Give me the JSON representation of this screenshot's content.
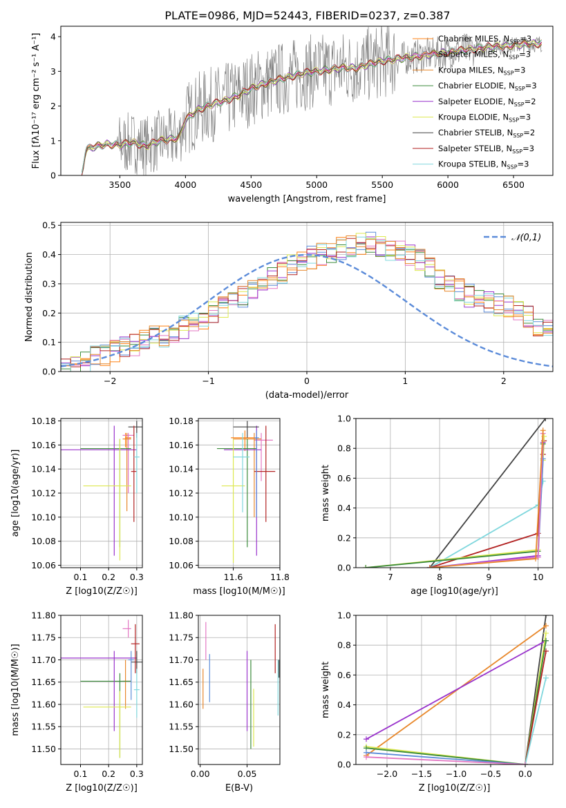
{
  "figure": {
    "title": "PLATE=0986, MJD=52443, FIBERID=0237, z=0.387"
  },
  "chart_data": [
    {
      "id": "spectrum",
      "type": "line",
      "xlabel": "wavelength [Angstrom, rest frame]",
      "ylabel": "Flux [fλ10⁻¹⁷ erg cm⁻² s⁻¹ A⁻¹]",
      "xlim": [
        3050,
        6800
      ],
      "ylim": [
        0,
        4.3
      ],
      "xticks": [
        3500,
        4000,
        4500,
        5000,
        5500,
        6000,
        6500
      ],
      "yticks": [
        0,
        1,
        2,
        3,
        4
      ],
      "grid": false,
      "legend_position": "top-right",
      "data_color": "#808080",
      "continuum_x": [
        3210,
        3240,
        3300,
        3400,
        3500,
        3600,
        3700,
        3800,
        3900,
        3950,
        4000,
        4100,
        4200,
        4300,
        4400,
        4500,
        4600,
        4700,
        4800,
        4900,
        5000,
        5100,
        5200,
        5300,
        5400,
        5500,
        5600,
        5700,
        5800,
        5900,
        6000,
        6100,
        6200,
        6300,
        6400,
        6500,
        6600,
        6700
      ],
      "continuum_y": [
        0,
        0.75,
        0.82,
        0.9,
        0.88,
        0.95,
        0.85,
        1.0,
        1.05,
        1.1,
        1.6,
        1.9,
        2.05,
        2.15,
        2.3,
        2.5,
        2.65,
        2.75,
        2.85,
        2.95,
        3.0,
        3.05,
        3.1,
        3.1,
        3.2,
        3.3,
        3.35,
        3.4,
        3.45,
        3.5,
        3.55,
        3.6,
        3.65,
        3.7,
        3.72,
        3.75,
        3.78,
        3.8
      ],
      "series": [
        {
          "name": "Chabrier MILES, N_SSP=3",
          "color": "#ff7f0e"
        },
        {
          "name": "Salpeter MILES, N_SSP=3",
          "color": "#e377c2"
        },
        {
          "name": "Kroupa MILES, N_SSP=3",
          "color": "#e8872a"
        },
        {
          "name": "Chabrier ELODIE, N_SSP=3",
          "color": "#3a8a3a"
        },
        {
          "name": "Salpeter ELODIE, N_SSP=2",
          "color": "#9932cc"
        },
        {
          "name": "Kroupa ELODIE, N_SSP=3",
          "color": "#dde84f"
        },
        {
          "name": "Chabrier STELIB, N_SSP=2",
          "color": "#404040"
        },
        {
          "name": "Salpeter STELIB, N_SSP=3",
          "color": "#b22222"
        },
        {
          "name": "Kroupa STELIB, N_SSP=3",
          "color": "#7fd7dd"
        }
      ]
    },
    {
      "id": "residuals",
      "type": "line",
      "xlabel": "(data-model)/error",
      "ylabel": "Normed distribution",
      "xlim": [
        -2.5,
        2.5
      ],
      "ylim": [
        0,
        0.51
      ],
      "xticks": [
        -2,
        -1,
        0,
        1,
        2
      ],
      "yticks": [
        0.0,
        0.1,
        0.2,
        0.3,
        0.4,
        0.5
      ],
      "grid": true,
      "legend_position": "top-right",
      "legend": "𝒩(0,1)",
      "gauss_color": "#5b8bd9",
      "hist_colors": [
        "#ff7f0e",
        "#e377c2",
        "#5b8bd9",
        "#3a8a3a",
        "#9932cc",
        "#dde84f",
        "#b22222",
        "#7fd7dd",
        "#e8872a"
      ],
      "bin_width": 0.1,
      "hist_base": [
        0.01,
        0.02,
        0.03,
        0.05,
        0.06,
        0.07,
        0.08,
        0.09,
        0.11,
        0.12,
        0.12,
        0.13,
        0.15,
        0.16,
        0.18,
        0.2,
        0.22,
        0.24,
        0.26,
        0.28,
        0.3,
        0.32,
        0.34,
        0.36,
        0.38,
        0.39,
        0.4,
        0.41,
        0.42,
        0.43,
        0.44,
        0.44,
        0.43,
        0.42,
        0.41,
        0.4,
        0.38,
        0.35,
        0.32,
        0.3,
        0.28,
        0.26,
        0.25,
        0.24,
        0.23,
        0.22,
        0.21,
        0.19,
        0.16,
        0.14,
        0.12,
        0.09,
        0.06,
        0.05,
        0.04,
        0.03,
        0.03,
        0.03,
        0.04,
        0.04
      ]
    },
    {
      "id": "age-vs-Z",
      "type": "scatter",
      "xlabel": "Z [log10(Z/Z☉)]",
      "ylabel": "age  [log10(age/yr)]",
      "xlim": [
        0.03,
        0.32
      ],
      "ylim": [
        10.058,
        10.182
      ],
      "xticks": [
        0.1,
        0.2,
        0.3
      ],
      "yticks": [
        10.06,
        10.08,
        10.1,
        10.12,
        10.14,
        10.16,
        10.18
      ],
      "grid": true,
      "points": [
        {
          "x": 0.26,
          "y": 10.166,
          "xerr": [
            0.26,
            0.28
          ],
          "yerr": [
            10.158,
            10.17
          ],
          "color": "#ff7f0e"
        },
        {
          "x": 0.27,
          "y": 10.168,
          "xerr": [
            0.25,
            0.29
          ],
          "yerr": [
            10.12,
            10.17
          ],
          "color": "#e377c2"
        },
        {
          "x": 0.265,
          "y": 10.165,
          "xerr": [
            0.25,
            0.28
          ],
          "yerr": [
            10.105,
            10.17
          ],
          "color": "#e8872a"
        },
        {
          "x": 0.24,
          "y": 10.157,
          "xerr": [
            0.1,
            0.28
          ],
          "yerr": [
            10.075,
            10.165
          ],
          "color": "#3a8a3a"
        },
        {
          "x": 0.22,
          "y": 10.156,
          "xerr": [
            0.03,
            0.3
          ],
          "yerr": [
            10.068,
            10.176
          ],
          "color": "#9932cc"
        },
        {
          "x": 0.24,
          "y": 10.126,
          "xerr": [
            0.11,
            0.28
          ],
          "yerr": [
            10.064,
            10.165
          ],
          "color": "#dde84f"
        },
        {
          "x": 0.3,
          "y": 10.175,
          "xerr": [
            0.27,
            0.32
          ],
          "yerr": [
            10.166,
            10.18
          ],
          "color": "#404040"
        },
        {
          "x": 0.29,
          "y": 10.138,
          "xerr": [
            0.28,
            0.3
          ],
          "yerr": [
            10.096,
            10.176
          ],
          "color": "#b22222"
        },
        {
          "x": 0.3,
          "y": 10.15,
          "xerr": [
            0.29,
            0.31
          ],
          "yerr": [
            10.12,
            10.17
          ],
          "color": "#7fd7dd"
        }
      ]
    },
    {
      "id": "age-vs-mass",
      "type": "scatter",
      "xlabel": "mass [log10(M/M☉)]",
      "ylabel": "",
      "xlim": [
        11.45,
        11.8
      ],
      "ylim": [
        10.058,
        10.182
      ],
      "xticks": [
        11.6,
        11.8
      ],
      "yticks": [
        10.06,
        10.08,
        10.1,
        10.12,
        10.14,
        10.16,
        10.18
      ],
      "grid": true,
      "points": [
        {
          "x": 11.65,
          "y": 10.166,
          "xerr": [
            11.59,
            11.69
          ],
          "yerr": [
            10.155,
            10.172
          ],
          "color": "#ff7f0e"
        },
        {
          "x": 11.72,
          "y": 10.164,
          "xerr": [
            11.69,
            11.77
          ],
          "yerr": [
            10.13,
            10.17
          ],
          "color": "#e377c2"
        },
        {
          "x": 11.69,
          "y": 10.165,
          "xerr": [
            11.6,
            11.72
          ],
          "yerr": [
            10.1,
            10.17
          ],
          "color": "#e8872a"
        },
        {
          "x": 11.66,
          "y": 10.157,
          "xerr": [
            11.53,
            11.7
          ],
          "yerr": [
            10.075,
            10.165
          ],
          "color": "#3a8a3a"
        },
        {
          "x": 11.7,
          "y": 10.156,
          "xerr": [
            11.56,
            11.72
          ],
          "yerr": [
            10.068,
            10.176
          ],
          "color": "#9932cc"
        },
        {
          "x": 11.6,
          "y": 10.126,
          "xerr": [
            11.55,
            11.65
          ],
          "yerr": [
            10.062,
            10.165
          ],
          "color": "#dde84f"
        },
        {
          "x": 11.66,
          "y": 10.175,
          "xerr": [
            11.6,
            11.71
          ],
          "yerr": [
            10.166,
            10.18
          ],
          "color": "#404040"
        },
        {
          "x": 11.74,
          "y": 10.138,
          "xerr": [
            11.69,
            11.78
          ],
          "yerr": [
            10.096,
            10.176
          ],
          "color": "#b22222"
        },
        {
          "x": 11.64,
          "y": 10.15,
          "xerr": [
            11.6,
            11.67
          ],
          "yerr": [
            10.104,
            10.17
          ],
          "color": "#7fd7dd"
        },
        {
          "x": 11.7,
          "y": 10.166,
          "xerr": [
            11.69,
            11.71
          ],
          "yerr": [
            10.1,
            10.172
          ],
          "color": "#5b8bd9"
        }
      ]
    },
    {
      "id": "massweight-vs-age",
      "type": "line",
      "xlabel": "age  [log10(age/yr)]",
      "ylabel": "mass weight",
      "xlim": [
        6.3,
        10.3
      ],
      "ylim": [
        0,
        1.0
      ],
      "xticks": [
        7,
        8,
        9,
        10
      ],
      "yticks": [
        0.0,
        0.2,
        0.4,
        0.6,
        0.8,
        1.0
      ],
      "grid": true,
      "series": [
        {
          "color": "#404040",
          "x": [
            7.8,
            10.15
          ],
          "y": [
            0.0,
            1.0
          ]
        },
        {
          "color": "#7fd7dd",
          "x": [
            7.8,
            10.0,
            10.1
          ],
          "y": [
            0.0,
            0.42,
            0.58
          ]
        },
        {
          "color": "#b22222",
          "x": [
            7.8,
            10.0,
            10.1,
            10.12
          ],
          "y": [
            0.0,
            0.23,
            0.76,
            0.85
          ]
        },
        {
          "color": "#dde84f",
          "x": [
            6.5,
            10.0,
            10.1,
            10.12
          ],
          "y": [
            0.0,
            0.12,
            0.72,
            0.88
          ]
        },
        {
          "color": "#3a8a3a",
          "x": [
            6.5,
            10.0,
            10.1
          ],
          "y": [
            0.0,
            0.11,
            0.83
          ]
        },
        {
          "color": "#9932cc",
          "x": [
            7.8,
            10.0,
            10.1
          ],
          "y": [
            0.0,
            0.08,
            0.84
          ]
        },
        {
          "color": "#5b8bd9",
          "x": [
            7.8,
            10.0,
            10.1
          ],
          "y": [
            0.0,
            0.07,
            0.73
          ]
        },
        {
          "color": "#e377c2",
          "x": [
            7.8,
            10.0,
            10.1
          ],
          "y": [
            0.0,
            0.07,
            0.9
          ]
        },
        {
          "color": "#e8872a",
          "x": [
            7.8,
            9.95,
            10.1
          ],
          "y": [
            0.0,
            0.06,
            0.92
          ]
        }
      ]
    },
    {
      "id": "mass-vs-Z",
      "type": "scatter",
      "xlabel": "Z [log10(Z/Z☉)]",
      "ylabel": "mass [log10(M/M☉)]",
      "xlim": [
        0.03,
        0.32
      ],
      "ylim": [
        11.465,
        11.8
      ],
      "xticks": [
        0.1,
        0.2,
        0.3
      ],
      "yticks": [
        11.5,
        11.55,
        11.6,
        11.65,
        11.7,
        11.75,
        11.8
      ],
      "grid": true,
      "points": [
        {
          "x": 0.26,
          "y": 11.652,
          "xerr": [
            0.25,
            0.28
          ],
          "yerr": [
            11.59,
            11.7
          ],
          "color": "#e8872a"
        },
        {
          "x": 0.27,
          "y": 11.77,
          "xerr": [
            0.25,
            0.28
          ],
          "yerr": [
            11.75,
            11.79
          ],
          "color": "#e377c2"
        },
        {
          "x": 0.24,
          "y": 11.652,
          "xerr": [
            0.1,
            0.28
          ],
          "yerr": [
            11.48,
            11.67
          ],
          "color": "#3a8a3a"
        },
        {
          "x": 0.22,
          "y": 11.704,
          "xerr": [
            0.03,
            0.3
          ],
          "yerr": [
            11.54,
            11.72
          ],
          "color": "#9932cc"
        },
        {
          "x": 0.24,
          "y": 11.594,
          "xerr": [
            0.11,
            0.28
          ],
          "yerr": [
            11.48,
            11.63
          ],
          "color": "#dde84f"
        },
        {
          "x": 0.3,
          "y": 11.695,
          "xerr": [
            0.28,
            0.32
          ],
          "yerr": [
            11.67,
            11.72
          ],
          "color": "#404040"
        },
        {
          "x": 0.295,
          "y": 11.736,
          "xerr": [
            0.28,
            0.31
          ],
          "yerr": [
            11.67,
            11.78
          ],
          "color": "#b22222"
        },
        {
          "x": 0.3,
          "y": 11.633,
          "xerr": [
            0.29,
            0.31
          ],
          "yerr": [
            11.57,
            11.68
          ],
          "color": "#7fd7dd"
        },
        {
          "x": 0.28,
          "y": 11.7,
          "xerr": [
            0.27,
            0.29
          ],
          "yerr": [
            11.61,
            11.72
          ],
          "color": "#5b8bd9"
        }
      ]
    },
    {
      "id": "mass-vs-EBV",
      "type": "scatter",
      "xlabel": "E(B-V)",
      "ylabel": "",
      "xlim": [
        -0.002,
        0.085
      ],
      "ylim": [
        11.465,
        11.8
      ],
      "xticks": [
        0.0,
        0.05
      ],
      "yticks": [
        11.5,
        11.55,
        11.6,
        11.65,
        11.7,
        11.75,
        11.8
      ],
      "grid": true,
      "points": [
        {
          "x": 0.003,
          "y": 11.64,
          "yerr": [
            11.59,
            11.68
          ],
          "color": "#e8872a"
        },
        {
          "x": 0.006,
          "y": 11.74,
          "yerr": [
            11.7,
            11.785
          ],
          "color": "#e377c2"
        },
        {
          "x": 0.01,
          "y": 11.66,
          "yerr": [
            11.605,
            11.713
          ],
          "color": "#5b8bd9"
        },
        {
          "x": 0.05,
          "y": 11.65,
          "yerr": [
            11.54,
            11.72
          ],
          "color": "#9932cc"
        },
        {
          "x": 0.054,
          "y": 11.63,
          "yerr": [
            11.5,
            11.7
          ],
          "color": "#3a8a3a"
        },
        {
          "x": 0.057,
          "y": 11.58,
          "yerr": [
            11.505,
            11.635
          ],
          "color": "#dde84f"
        },
        {
          "x": 0.08,
          "y": 11.72,
          "yerr": [
            11.67,
            11.78
          ],
          "color": "#b22222"
        },
        {
          "x": 0.083,
          "y": 11.64,
          "yerr": [
            11.575,
            11.7
          ],
          "color": "#7fd7dd"
        },
        {
          "x": 0.084,
          "y": 11.69,
          "yerr": [
            11.66,
            11.7
          ],
          "color": "#404040"
        }
      ]
    },
    {
      "id": "massweight-vs-Z",
      "type": "line",
      "xlabel": "Z [log10(Z/Z☉)]",
      "ylabel": "mass weight",
      "xlim": [
        -2.45,
        0.4
      ],
      "ylim": [
        0,
        1.0
      ],
      "xticks": [
        -2.0,
        -1.5,
        -1.0,
        -0.5,
        0.0
      ],
      "yticks": [
        0.0,
        0.2,
        0.4,
        0.6,
        0.8,
        1.0
      ],
      "grid": true,
      "series": [
        {
          "color": "#404040",
          "x": [
            0.0,
            0.3
          ],
          "y": [
            0.0,
            1.0
          ]
        },
        {
          "color": "#e8872a",
          "x": [
            -2.3,
            0.3
          ],
          "y": [
            0.06,
            0.93
          ]
        },
        {
          "color": "#9932cc",
          "x": [
            -2.3,
            0.3
          ],
          "y": [
            0.17,
            0.83
          ]
        },
        {
          "color": "#dde84f",
          "x": [
            -2.3,
            0.0,
            0.3
          ],
          "y": [
            0.12,
            0.0,
            0.88
          ]
        },
        {
          "color": "#3a8a3a",
          "x": [
            -2.3,
            0.0,
            0.3
          ],
          "y": [
            0.11,
            0.0,
            0.83
          ]
        },
        {
          "color": "#5b8bd9",
          "x": [
            -2.3,
            0.0
          ],
          "y": [
            0.08,
            0.0
          ]
        },
        {
          "color": "#b22222",
          "x": [
            0.0,
            0.3
          ],
          "y": [
            0.0,
            0.76
          ]
        },
        {
          "color": "#7fd7dd",
          "x": [
            0.0,
            0.3
          ],
          "y": [
            0.0,
            0.58
          ]
        },
        {
          "color": "#e377c2",
          "x": [
            -2.3,
            0.0
          ],
          "y": [
            0.05,
            0.0
          ]
        }
      ]
    }
  ]
}
